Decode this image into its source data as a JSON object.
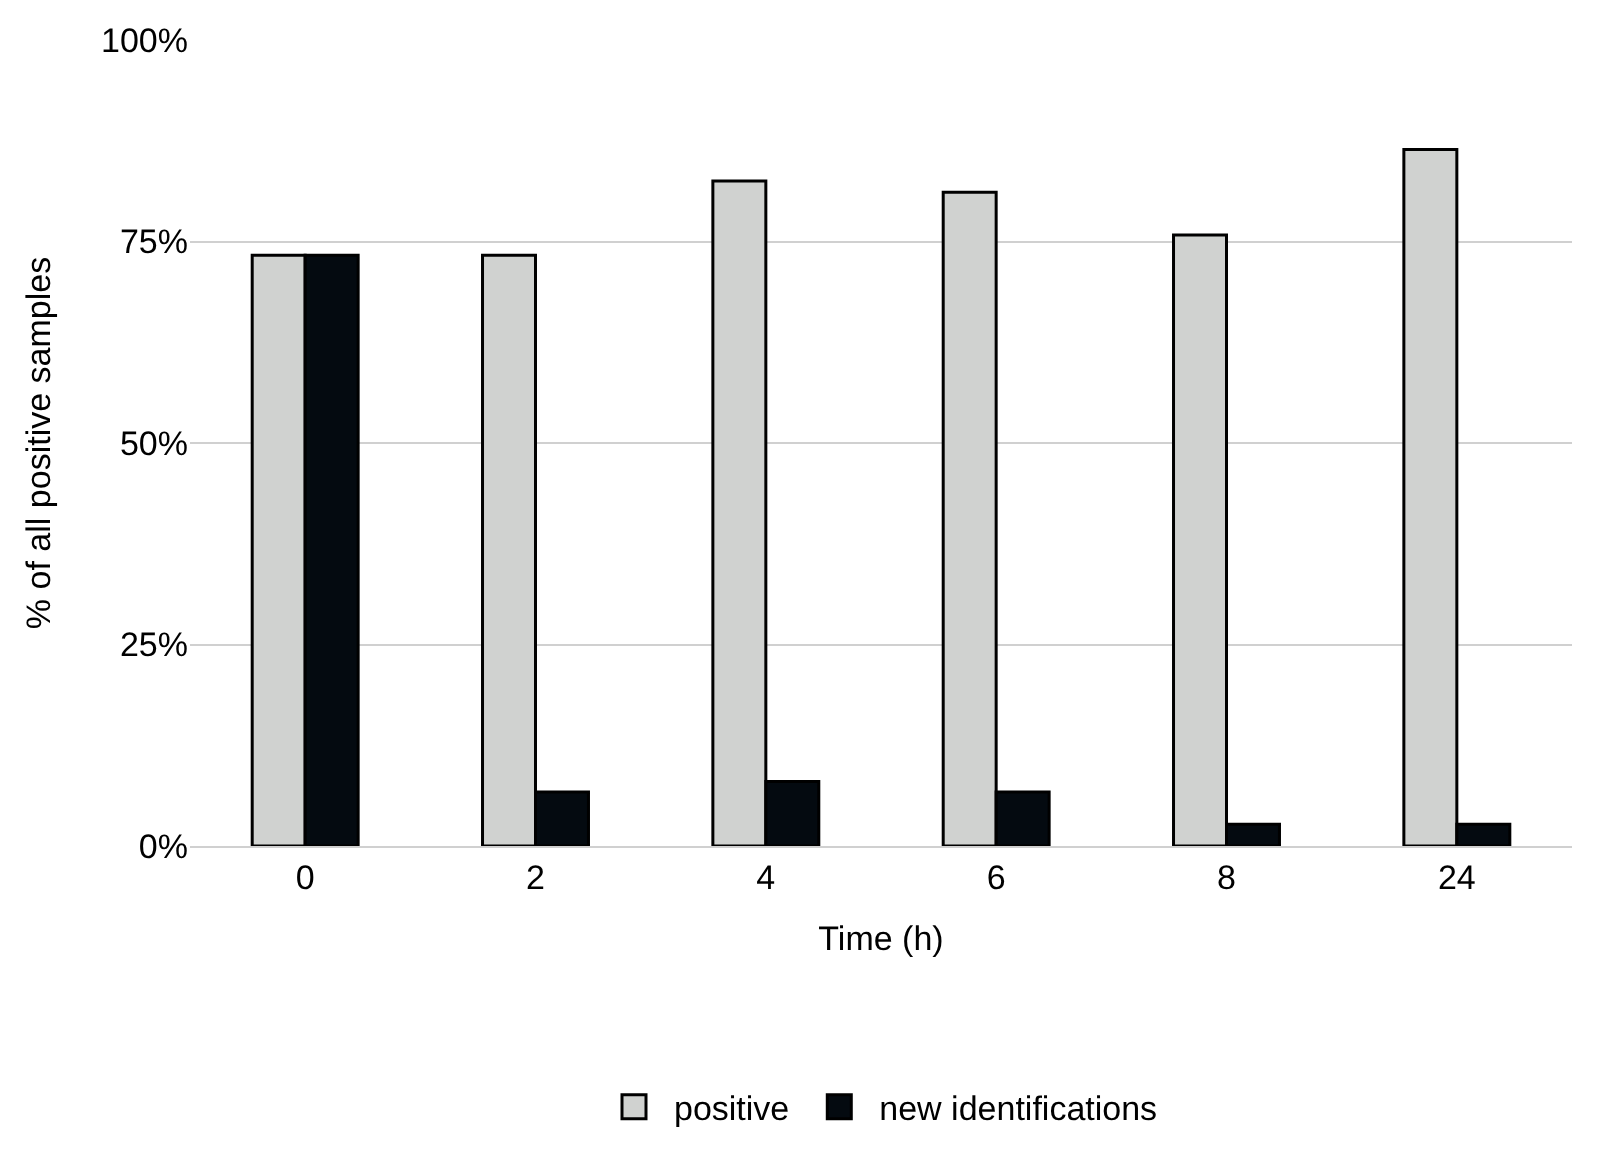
{
  "chart_data": {
    "type": "bar",
    "xlabel": "Time (h)",
    "ylabel": "% of all positive samples",
    "categories": [
      "0",
      "2",
      "4",
      "6",
      "8",
      "24"
    ],
    "series": [
      {
        "name": "positive",
        "color": "#d0d2d0",
        "values": [
          73.3,
          73.3,
          82.5,
          81.1,
          75.8,
          86.4
        ]
      },
      {
        "name": "new identifications",
        "color": "#040a10",
        "values": [
          73.3,
          6.7,
          8.0,
          6.7,
          2.7,
          2.7
        ]
      }
    ],
    "ylim": [
      0,
      100
    ],
    "yticks": [
      {
        "value": 0,
        "label": "0%"
      },
      {
        "value": 25,
        "label": "25%"
      },
      {
        "value": 50,
        "label": "50%"
      },
      {
        "value": 75,
        "label": "75%"
      },
      {
        "value": 100,
        "label": "100%"
      }
    ],
    "grid": "y",
    "legend": "bottom"
  }
}
